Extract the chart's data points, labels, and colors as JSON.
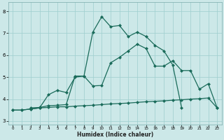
{
  "xlabel": "Humidex (Indice chaleur)",
  "xlim": [
    -0.5,
    23.5
  ],
  "ylim": [
    2.85,
    8.4
  ],
  "yticks": [
    3,
    4,
    5,
    6,
    7,
    8
  ],
  "xticks": [
    0,
    1,
    2,
    3,
    4,
    5,
    6,
    7,
    8,
    9,
    10,
    11,
    12,
    13,
    14,
    15,
    16,
    17,
    18,
    19,
    20,
    21,
    22,
    23
  ],
  "line_color": "#1a6b5a",
  "bg_color": "#cce8e8",
  "grid_color": "#9ecece",
  "line_flat_x": [
    0,
    1,
    2,
    3,
    4,
    5,
    6,
    7,
    8,
    9,
    10,
    11,
    12,
    13,
    14,
    15,
    16,
    17,
    18,
    19,
    20,
    21,
    22,
    23
  ],
  "line_flat_y": [
    3.5,
    3.5,
    3.55,
    3.6,
    3.62,
    3.65,
    3.65,
    3.68,
    3.7,
    3.72,
    3.75,
    3.78,
    3.8,
    3.82,
    3.85,
    3.88,
    3.9,
    3.92,
    3.95,
    3.97,
    4.0,
    4.02,
    4.05,
    3.6
  ],
  "line_mid_x": [
    0,
    1,
    2,
    3,
    4,
    5,
    6,
    7,
    8,
    9,
    10,
    11,
    12,
    13,
    14,
    15,
    16,
    17,
    18,
    19,
    20,
    21,
    22,
    23
  ],
  "line_mid_y": [
    3.5,
    3.5,
    3.55,
    3.6,
    4.2,
    4.4,
    4.3,
    5.0,
    5.05,
    4.6,
    4.62,
    5.65,
    5.9,
    6.2,
    6.5,
    6.3,
    5.5,
    5.5,
    5.75,
    5.3,
    5.3,
    4.45,
    4.7,
    3.6
  ],
  "line_high_x": [
    2,
    3,
    4,
    5,
    6,
    7,
    8,
    9,
    10,
    11,
    12,
    13,
    14,
    15,
    16,
    17,
    18,
    19
  ],
  "line_high_y": [
    3.6,
    3.62,
    3.7,
    3.72,
    3.75,
    5.05,
    5.05,
    7.05,
    7.75,
    7.3,
    7.35,
    6.85,
    7.05,
    6.85,
    6.45,
    6.2,
    5.55,
    3.6
  ],
  "marker_size": 2.5,
  "line_width": 0.9
}
